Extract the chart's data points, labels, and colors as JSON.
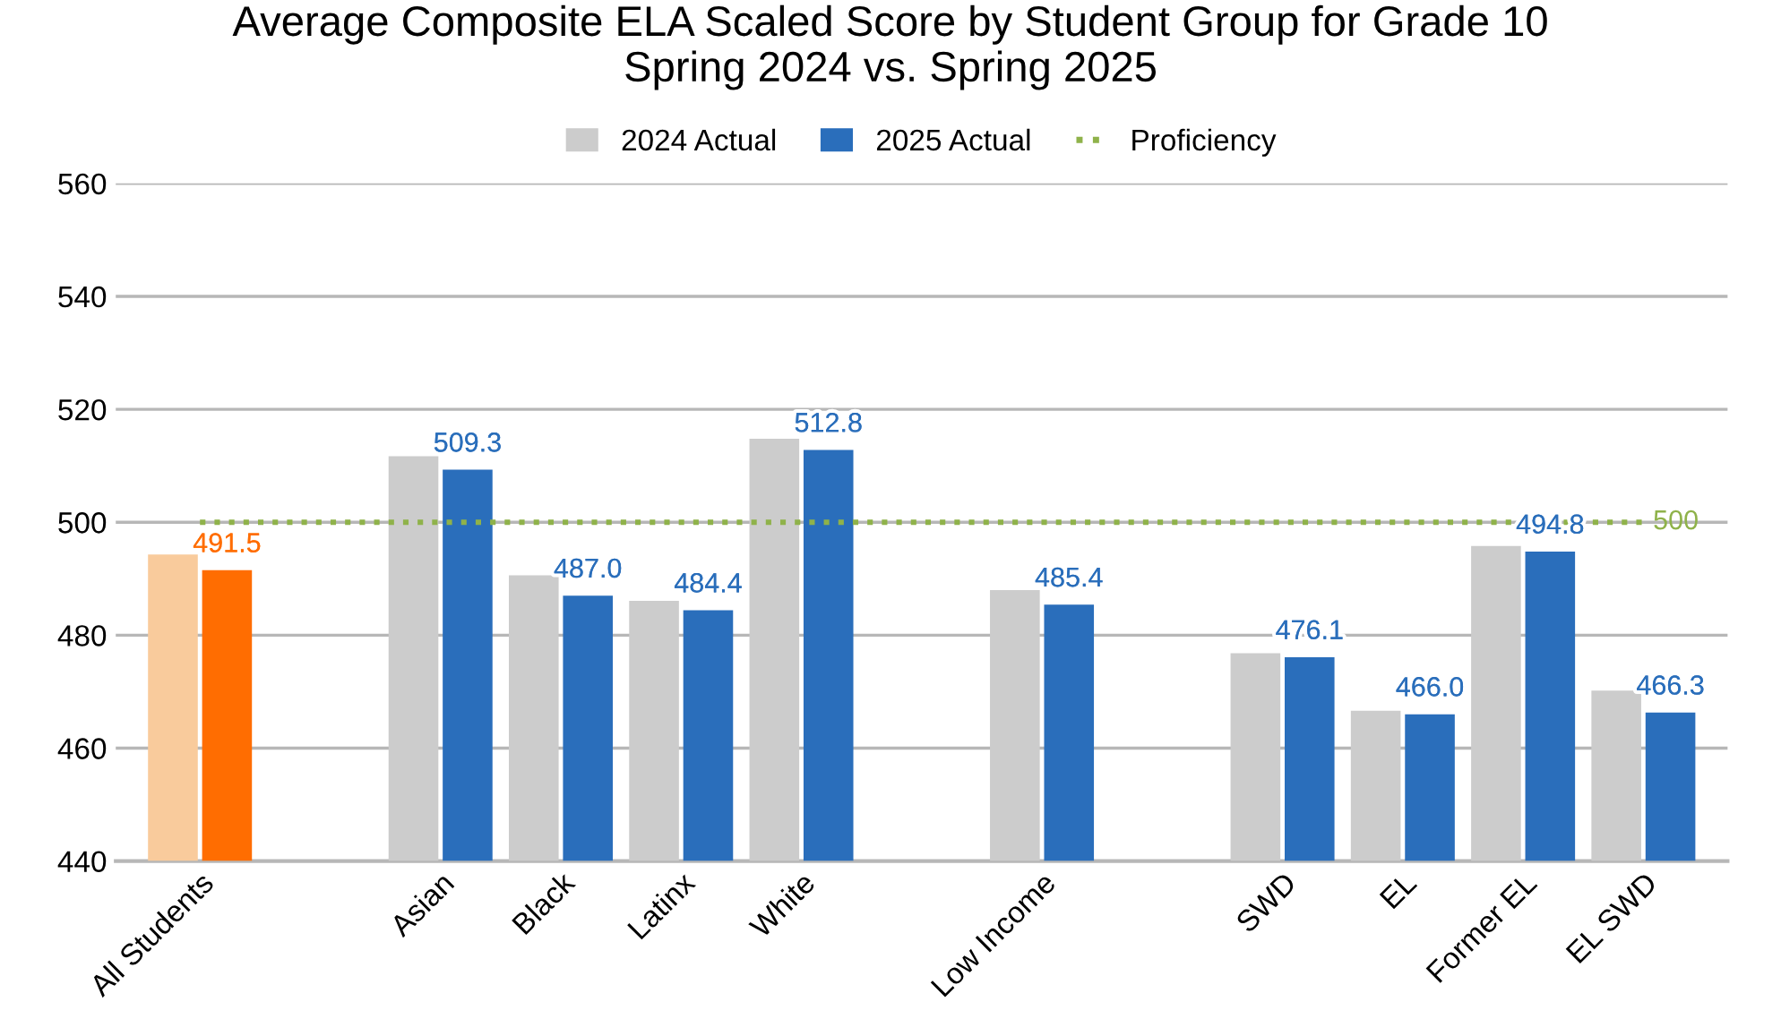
{
  "chart_data": {
    "type": "bar",
    "title": "Average Composite ELA Scaled Score by Student Group for Grade 10\nSpring 2024 vs. Spring 2025",
    "categories": [
      "All Students",
      null,
      "Asian",
      "Black",
      "Latinx",
      "White",
      null,
      "Low Income",
      null,
      "SWD",
      "EL",
      "Former EL",
      "EL SWD"
    ],
    "series": [
      {
        "name": "2024 Actual",
        "color": "#cccccc",
        "colors": [
          "#f9cb9c",
          "#cccccc",
          "#cccccc",
          "#cccccc",
          "#cccccc",
          "#cccccc",
          "#cccccc",
          "#cccccc",
          "#cccccc",
          "#cccccc",
          "#cccccc",
          "#cccccc",
          "#cccccc"
        ],
        "values": [
          494.3,
          null,
          511.7,
          490.6,
          486.1,
          514.8,
          null,
          488.0,
          null,
          476.8,
          466.6,
          495.8,
          470.2
        ]
      },
      {
        "name": "2025 Actual",
        "color": "#2a6ebb",
        "colors": [
          "#ff6d01",
          "#2a6ebb",
          "#2a6ebb",
          "#2a6ebb",
          "#2a6ebb",
          "#2a6ebb",
          "#2a6ebb",
          "#2a6ebb",
          "#2a6ebb",
          "#2a6ebb",
          "#2a6ebb",
          "#2a6ebb",
          "#2a6ebb"
        ],
        "values": [
          491.5,
          null,
          509.3,
          487.0,
          484.4,
          512.8,
          null,
          485.4,
          null,
          476.1,
          466.0,
          494.8,
          466.3
        ],
        "value_labels": [
          "491.5",
          null,
          "509.3",
          "487.0",
          "484.4",
          "512.8",
          null,
          "485.4",
          null,
          "476.1",
          "466.0",
          "494.8",
          "466.3"
        ]
      },
      {
        "name": "Proficiency",
        "type": "line",
        "color": "#8fb24a",
        "line_style": "dotted",
        "values": [
          500,
          500,
          500,
          500,
          500,
          500,
          500,
          500,
          500,
          500,
          500,
          500,
          500
        ],
        "value_labels": [
          null,
          null,
          null,
          null,
          null,
          null,
          null,
          null,
          null,
          null,
          null,
          null,
          "500"
        ]
      }
    ],
    "ylim": [
      440,
      560
    ],
    "yticks": [
      440,
      460,
      480,
      500,
      520,
      540,
      560
    ],
    "grid": "y",
    "legend": "top"
  }
}
